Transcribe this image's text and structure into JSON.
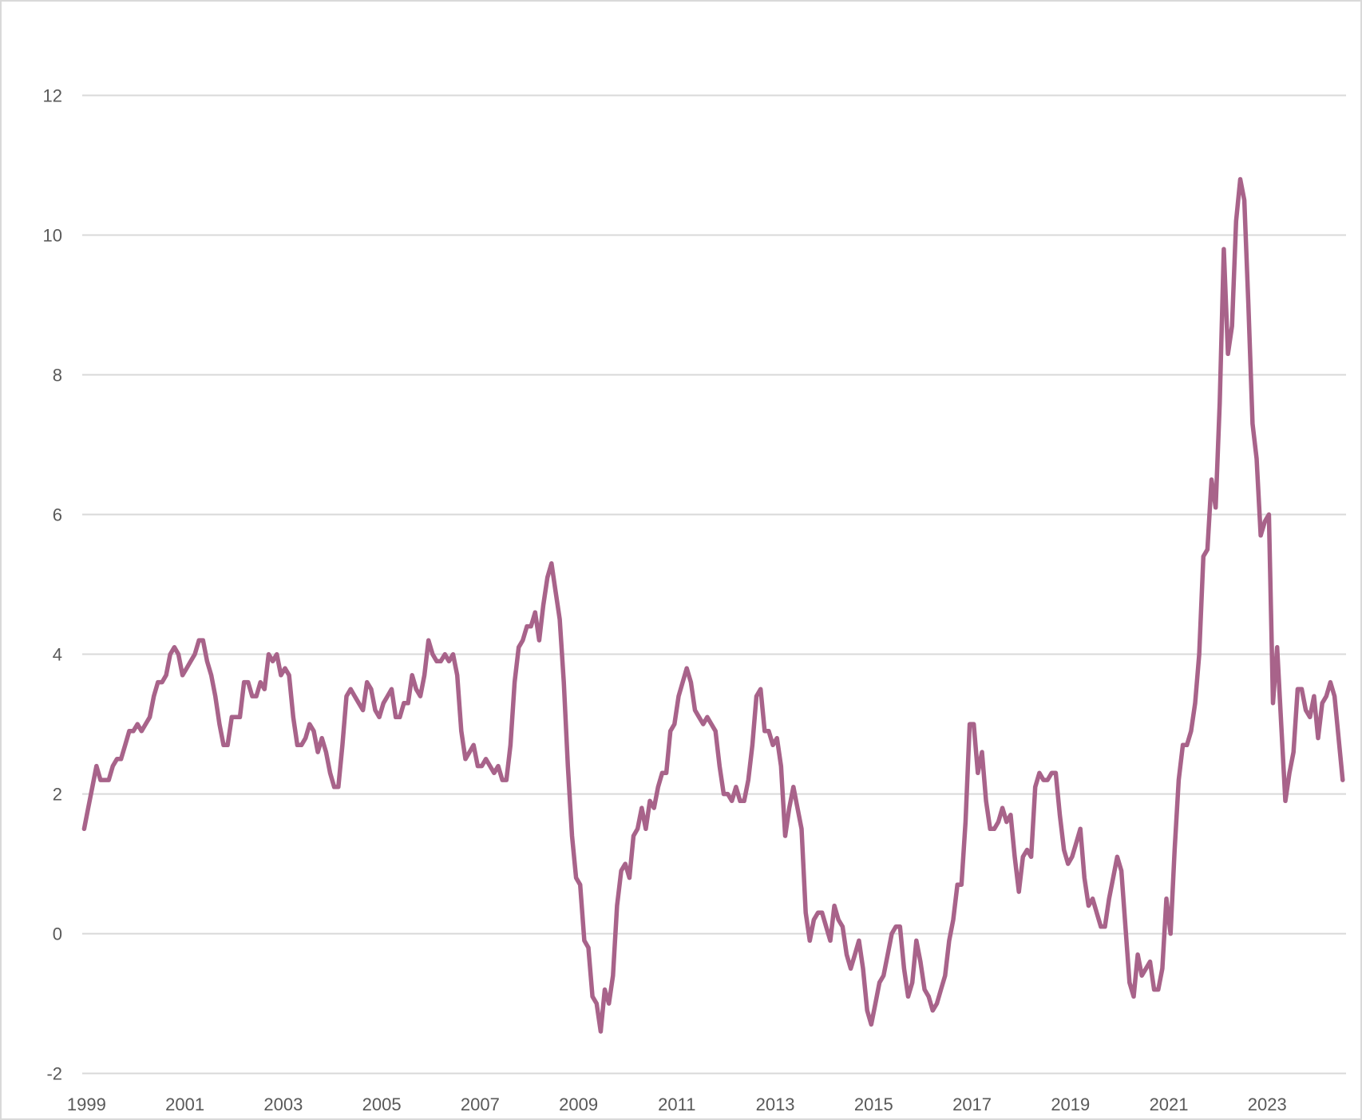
{
  "chart_data": {
    "type": "line",
    "title": "",
    "xlabel": "",
    "ylabel": "",
    "ylim": [
      -2,
      12
    ],
    "yticks": [
      "-2",
      "0",
      "2",
      "4",
      "6",
      "8",
      "10",
      "12"
    ],
    "xticks": [
      "1999",
      "2001",
      "2003",
      "2005",
      "2007",
      "2009",
      "2011",
      "2013",
      "2015",
      "2017",
      "2019",
      "2021",
      "2023"
    ],
    "grid": "horizontal",
    "legend": "none",
    "frequency": "monthly",
    "series": [
      {
        "color": "#A8638A",
        "values_by_year": {
          "1999": [
            1.5,
            1.8,
            2.1,
            2.4,
            2.2,
            2.2,
            2.2,
            2.4,
            2.5,
            2.5,
            2.7,
            2.9
          ],
          "2000": [
            2.9,
            3.0,
            2.9,
            3.0,
            3.1,
            3.4,
            3.6,
            3.6,
            3.7,
            4.0,
            4.1,
            4.0
          ],
          "2001": [
            3.7,
            3.8,
            3.9,
            4.0,
            4.2,
            4.2,
            3.9,
            3.7,
            3.4,
            3.0,
            2.7,
            2.7
          ],
          "2002": [
            3.1,
            3.1,
            3.1,
            3.6,
            3.6,
            3.4,
            3.4,
            3.6,
            3.5,
            4.0,
            3.9,
            4.0
          ],
          "2003": [
            3.7,
            3.8,
            3.7,
            3.1,
            2.7,
            2.7,
            2.8,
            3.0,
            2.9,
            2.6,
            2.8,
            2.6
          ],
          "2004": [
            2.3,
            2.1,
            2.1,
            2.7,
            3.4,
            3.5,
            3.4,
            3.3,
            3.2,
            3.6,
            3.5,
            3.2
          ],
          "2005": [
            3.1,
            3.3,
            3.4,
            3.5,
            3.1,
            3.1,
            3.3,
            3.3,
            3.7,
            3.5,
            3.4,
            3.7
          ],
          "2006": [
            4.2,
            4.0,
            3.9,
            3.9,
            4.0,
            3.9,
            4.0,
            3.7,
            2.9,
            2.5,
            2.6,
            2.7
          ],
          "2007": [
            2.4,
            2.4,
            2.5,
            2.4,
            2.3,
            2.4,
            2.2,
            2.2,
            2.7,
            3.6,
            4.1,
            4.2
          ],
          "2008": [
            4.4,
            4.4,
            4.6,
            4.2,
            4.7,
            5.1,
            5.3,
            4.9,
            4.5,
            3.6,
            2.4,
            1.4
          ],
          "2009": [
            0.8,
            0.7,
            -0.1,
            -0.2,
            -0.9,
            -1.0,
            -1.4,
            -0.8,
            -1.0,
            -0.6,
            0.4,
            0.9
          ],
          "2010": [
            1.0,
            0.8,
            1.4,
            1.5,
            1.8,
            1.5,
            1.9,
            1.8,
            2.1,
            2.3,
            2.3,
            2.9
          ],
          "2011": [
            3.0,
            3.4,
            3.6,
            3.8,
            3.6,
            3.2,
            3.1,
            3.0,
            3.1,
            3.0,
            2.9,
            2.4
          ],
          "2012": [
            2.0,
            2.0,
            1.9,
            2.1,
            1.9,
            1.9,
            2.2,
            2.7,
            3.4,
            3.5,
            2.9,
            2.9
          ],
          "2013": [
            2.7,
            2.8,
            2.4,
            1.4,
            1.8,
            2.1,
            1.8,
            1.5,
            0.3,
            -0.1,
            0.2,
            0.3
          ],
          "2014": [
            0.3,
            0.1,
            -0.1,
            0.4,
            0.2,
            0.1,
            -0.3,
            -0.5,
            -0.3,
            -0.1,
            -0.5,
            -1.1
          ],
          "2015": [
            -1.3,
            -1.0,
            -0.7,
            -0.6,
            -0.3,
            0.0,
            0.1,
            0.1,
            -0.5,
            -0.9,
            -0.7,
            -0.1
          ],
          "2016": [
            -0.4,
            -0.8,
            -0.9,
            -1.1,
            -1.0,
            -0.8,
            -0.6,
            -0.1,
            0.2,
            0.7,
            0.7,
            1.6
          ],
          "2017": [
            3.0,
            3.0,
            2.3,
            2.6,
            1.9,
            1.5,
            1.5,
            1.6,
            1.8,
            1.6,
            1.7,
            1.1
          ],
          "2018": [
            0.6,
            1.1,
            1.2,
            1.1,
            2.1,
            2.3,
            2.2,
            2.2,
            2.3,
            2.3,
            1.7,
            1.2
          ],
          "2019": [
            1.0,
            1.1,
            1.3,
            1.5,
            0.8,
            0.4,
            0.5,
            0.3,
            0.1,
            0.1,
            0.5,
            0.8
          ],
          "2020": [
            1.1,
            0.9,
            0.1,
            -0.7,
            -0.9,
            -0.3,
            -0.6,
            -0.5,
            -0.4,
            -0.8,
            -0.8,
            -0.5
          ],
          "2021": [
            0.5,
            0.0,
            1.2,
            2.2,
            2.7,
            2.7,
            2.9,
            3.3,
            4.0,
            5.4,
            5.5,
            6.5
          ],
          "2022": [
            6.1,
            7.6,
            9.8,
            8.3,
            8.7,
            10.2,
            10.8,
            10.5,
            9.0,
            7.3,
            6.8,
            5.7
          ],
          "2023": [
            5.9,
            6.0,
            3.3,
            4.1,
            3.0,
            1.9,
            2.3,
            2.6,
            3.5,
            3.5,
            3.2,
            3.1
          ],
          "2024": [
            3.4,
            2.8,
            3.3,
            3.4,
            3.6,
            3.4,
            2.8,
            2.2
          ]
        }
      }
    ]
  }
}
